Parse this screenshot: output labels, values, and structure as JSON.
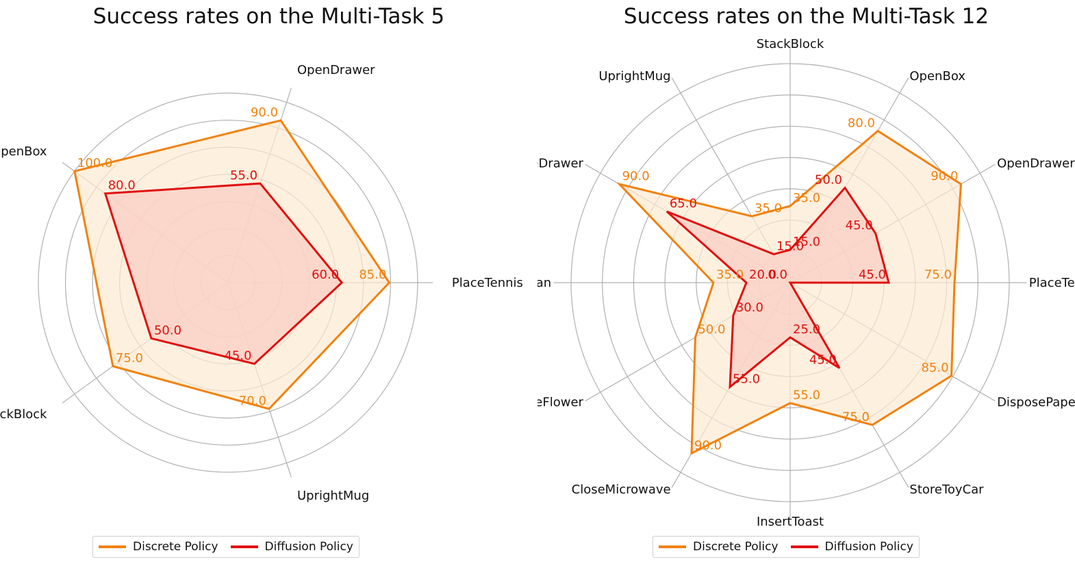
{
  "colors": {
    "discrete": "#f0820f",
    "diffusion": "#e01010",
    "discrete_fill": "#fde9d2",
    "diffusion_fill": "#f9cfc4",
    "grid": "#b0b0b0"
  },
  "chart_data": [
    {
      "type": "radar",
      "title": "Success rates on the Multi-Task 5",
      "rlim": [
        0,
        100
      ],
      "grid_rings": 7,
      "categories": [
        "PlaceTennis",
        "OpenDrawer",
        "OpenBox",
        "StackBlock",
        "UprightMug"
      ],
      "series": [
        {
          "name": "Discrete Policy",
          "values": [
            85.0,
            90.0,
            100.0,
            75.0,
            70.0
          ],
          "labels": [
            "85.0",
            "90.0",
            "100.0",
            "75.0",
            "70.0"
          ]
        },
        {
          "name": "Diffusion Policy",
          "values": [
            60.0,
            55.0,
            80.0,
            50.0,
            45.0
          ],
          "labels": [
            "60.0",
            "55.0",
            "80.0",
            "50.0",
            "45.0"
          ]
        }
      ],
      "legend": "bottom"
    },
    {
      "type": "radar",
      "title": "Success rates on the Multi-Task 12",
      "rlim": [
        0,
        100
      ],
      "grid_rings": 7,
      "categories": [
        "PlaceTennis",
        "OpenDrawer",
        "OpenBox",
        "StackBlock",
        "UprightMug",
        "CloseDrawer",
        "PlaceCan",
        "ArrangeFlower",
        "CloseMicrowave",
        "InsertToast",
        "StoreToyCar",
        "DisposePaper"
      ],
      "series": [
        {
          "name": "Discrete Policy",
          "values": [
            75.0,
            90.0,
            80.0,
            35.0,
            35.0,
            90.0,
            35.0,
            50.0,
            90.0,
            55.0,
            75.0,
            85.0
          ],
          "labels": [
            "75.0",
            "90.0",
            "80.0",
            "35.0",
            "35.0",
            "90.0",
            "35.0",
            "50.0",
            "90.0",
            "55.0",
            "75.0",
            "85.0"
          ]
        },
        {
          "name": "Diffusion Policy",
          "values": [
            45.0,
            45.0,
            50.0,
            15.0,
            15.0,
            65.0,
            20.0,
            30.0,
            55.0,
            25.0,
            45.0,
            0.0
          ],
          "labels": [
            "45.0",
            "45.0",
            "50.0",
            "15.0",
            "15.0",
            "65.0",
            "20.0",
            "30.0",
            "55.0",
            "25.0",
            "45.0",
            "0.0"
          ]
        }
      ],
      "legend": "bottom"
    }
  ]
}
